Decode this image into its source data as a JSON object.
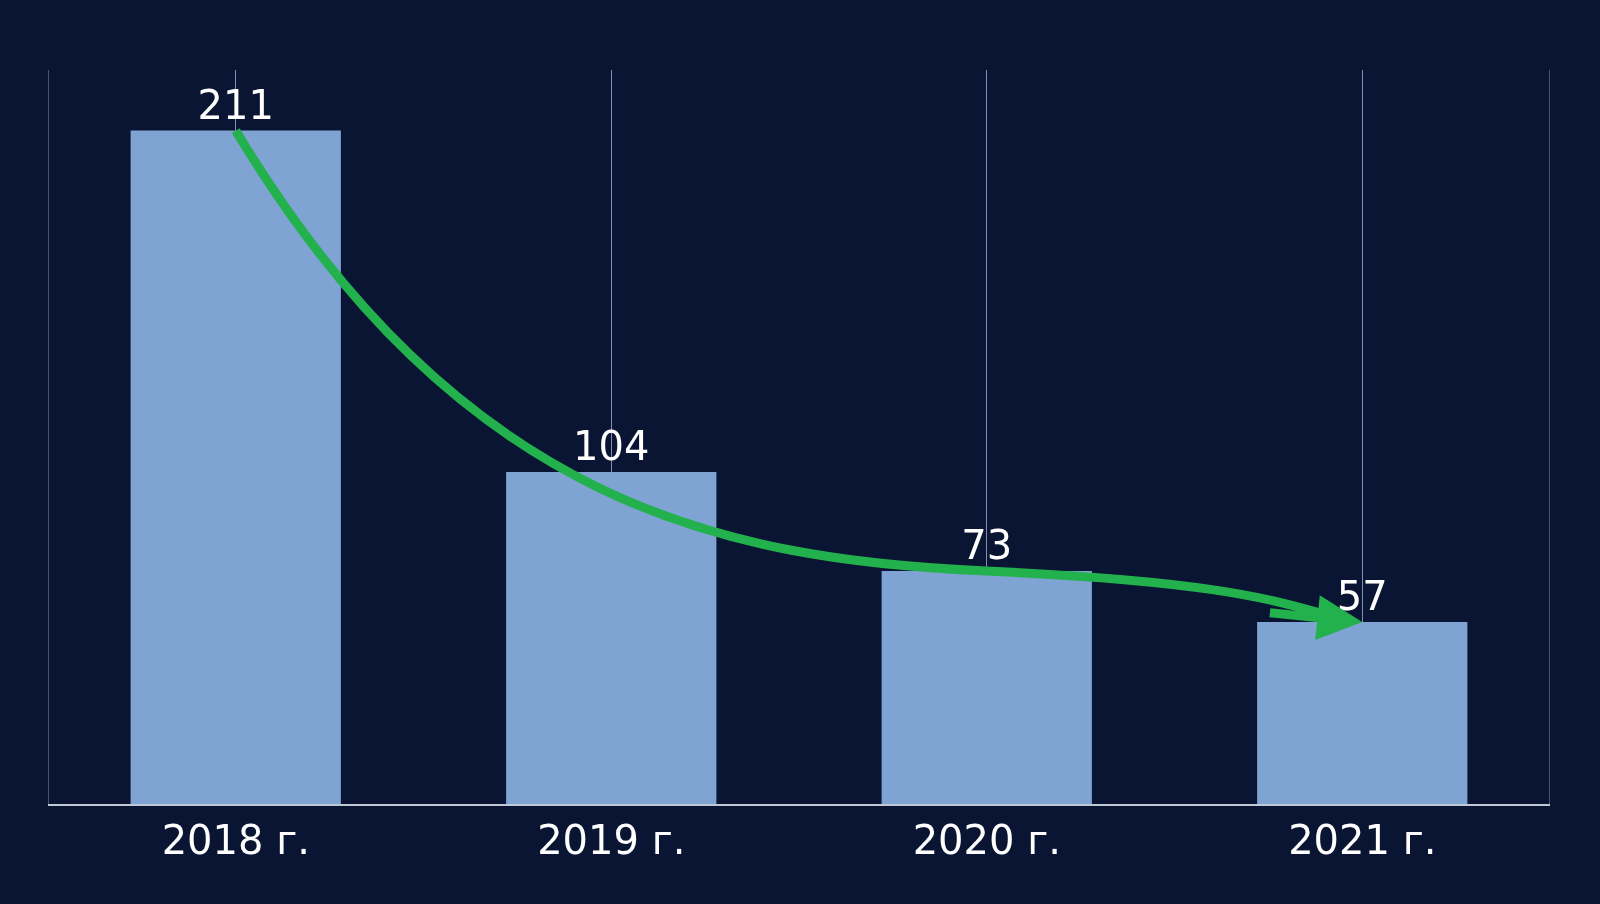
{
  "chart_data": {
    "type": "bar",
    "categories": [
      "2018 г.",
      "2019 г.",
      "2020 г.",
      "2021 г."
    ],
    "values": [
      211,
      104,
      73,
      57
    ],
    "color": "#7fa3d3",
    "data_labels": true,
    "grid": "x",
    "legend": false
  }
}
